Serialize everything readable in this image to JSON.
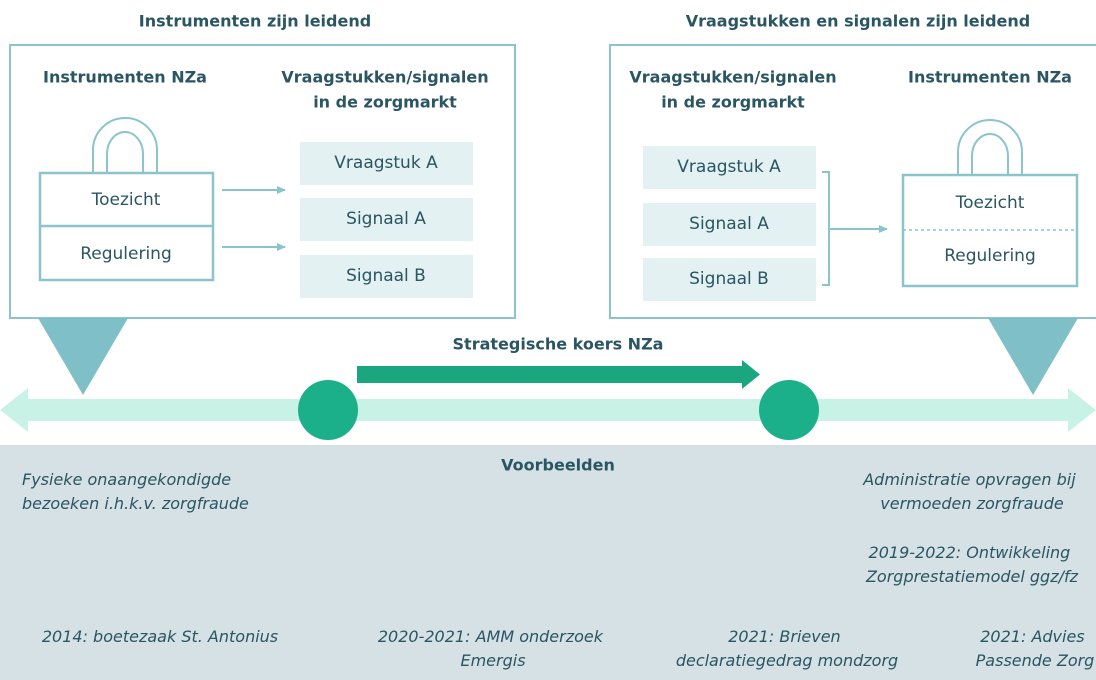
{
  "left": {
    "title": "Instrumenten zijn leidend",
    "instruments_header": "Instrumenten NZa",
    "issues_header": [
      "Vraagstukken/signalen",
      "in de zorgmarkt"
    ],
    "instruments": [
      "Toezicht",
      "Regulering"
    ],
    "issues": [
      "Vraagstuk A",
      "Signaal A",
      "Signaal B"
    ]
  },
  "right": {
    "title": "Vraagstukken en signalen zijn leidend",
    "issues_header": [
      "Vraagstukken/signalen",
      "in de zorgmarkt"
    ],
    "instruments_header": "Instrumenten NZa",
    "issues": [
      "Vraagstuk A",
      "Signaal A",
      "Signaal B"
    ],
    "instruments": [
      "Toezicht",
      "Regulering"
    ]
  },
  "arrow_label": "Strategische koers NZa",
  "examples": {
    "title": "Voorbeelden",
    "top_left": [
      "Fysieke onaangekondigde",
      "bezoeken i.h.k.v. zorgfraude"
    ],
    "top_right": [
      "Administratie opvragen bij",
      "vermoeden zorgfraude"
    ],
    "middle_right": [
      "2019-2022: Ontwikkeling",
      "Zorgprestatiemodel ggz/fz"
    ],
    "bottom": [
      [
        "2014: boetezaak St. Antonius"
      ],
      [
        "2020-2021: AMM onderzoek",
        "Emergis"
      ],
      [
        "2021: Brieven",
        "declaratiegedrag mondzorg"
      ],
      [
        "2021: Advies",
        "Passende Zorg"
      ]
    ]
  }
}
